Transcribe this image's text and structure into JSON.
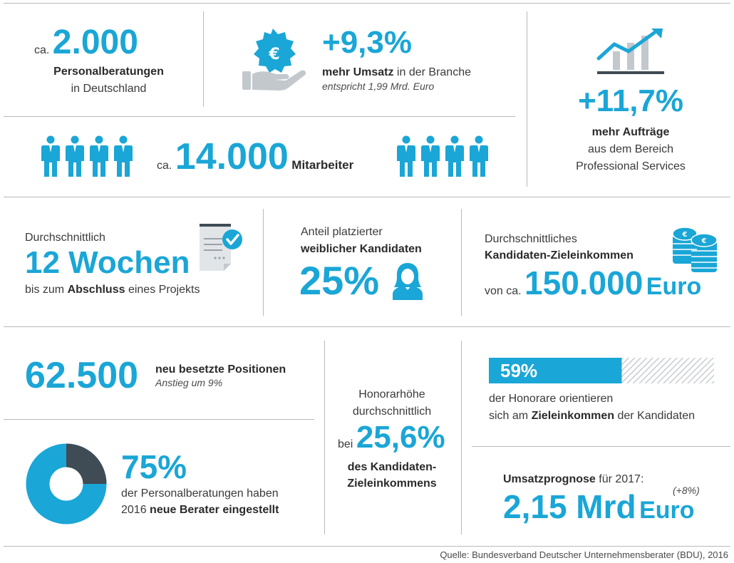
{
  "colors": {
    "accent": "#1aa6d6",
    "dark": "#3f4b55",
    "text": "#3a3a3a",
    "line": "#b9b9b9"
  },
  "consultancies": {
    "prefix": "ca.",
    "value": "2.000",
    "label": "Personalberatungen",
    "sub": "in Deutschland"
  },
  "revenue": {
    "icon": "euro-hand-icon",
    "value": "+9,3%",
    "label_bold": "mehr Umsatz",
    "label_rest": " in der Branche",
    "note": "entspricht 1,99 Mrd. Euro"
  },
  "orders": {
    "icon": "bar-chart-growth-icon",
    "value": "+11,7%",
    "label": "mehr Aufträge",
    "line2": "aus dem Bereich",
    "line3": "Professional Services"
  },
  "employees": {
    "icon": "person-icon",
    "prefix": "ca.",
    "value": "14.000",
    "label": "Mitarbeiter"
  },
  "duration": {
    "icon": "document-check-icon",
    "intro": "Durchschnittlich",
    "value": "12 Wochen",
    "pre": "bis zum ",
    "bold": "Abschluss",
    "post": " eines Projekts"
  },
  "female": {
    "icon": "woman-icon",
    "line1": "Anteil platzierter",
    "line2": "weiblicher Kandidaten",
    "value": "25%"
  },
  "income": {
    "icon": "coins-icon",
    "line1": "Durchschnittliches",
    "line2": "Kandidaten-Zieleinkommen",
    "prefix": "von ca.",
    "value": "150.000",
    "unit": "Euro"
  },
  "positions": {
    "value": "62.500",
    "bold1": "neu",
    "bold2": " besetzte Positionen",
    "note": "Anstieg um 9%"
  },
  "new_consultants": {
    "value": "75%",
    "line1": "der Personalberatungen haben",
    "pre": "2016 ",
    "bold": "neue Berater eingestellt",
    "share": 0.75
  },
  "fee": {
    "line1": "Honorarhöhe",
    "line2": "durchschnittlich",
    "prefix": "bei",
    "value": "25,6%",
    "line3": "des Kandidaten-",
    "line4": "Zieleinkommens"
  },
  "fee_basis": {
    "value": "59%",
    "share": 0.59,
    "line1": "der Honorare orientieren",
    "pre": "sich am ",
    "bold": "Zieleinkommen",
    "post": " der Kandidaten"
  },
  "forecast": {
    "bold": "Umsatzprognose",
    "rest": " für 2017:",
    "change": "(+8%)",
    "value": "2,15 Mrd",
    "unit": "Euro"
  },
  "source": {
    "label": "Quelle:",
    "text": " Bundesverband Deutscher Unternehmensberater (BDU), 2016"
  }
}
